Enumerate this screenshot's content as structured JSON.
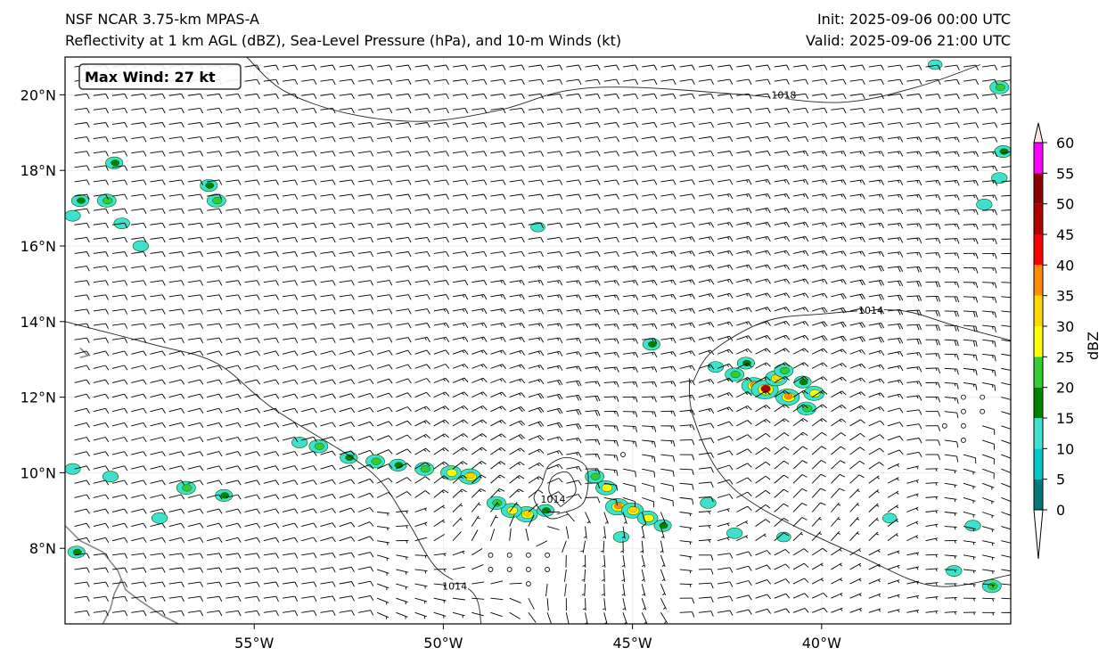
{
  "header": {
    "model_title": "NSF NCAR 3.75-km MPAS-A",
    "fields_title": "Reflectivity at 1 km AGL (dBZ), Sea-Level Pressure (hPa), and 10-m Winds (kt)",
    "init_time": "Init: 2025-09-06 00:00 UTC",
    "valid_time": "Valid: 2025-09-06 21:00 UTC"
  },
  "map": {
    "lon_range": [
      -60,
      -35
    ],
    "lat_range": [
      6,
      21
    ],
    "lon_ticks": [
      {
        "lon": -55,
        "label": "55°W"
      },
      {
        "lon": -50,
        "label": "50°W"
      },
      {
        "lon": -45,
        "label": "45°W"
      },
      {
        "lon": -40,
        "label": "40°W"
      }
    ],
    "lat_ticks": [
      {
        "lat": 20,
        "label": "20°N"
      },
      {
        "lat": 18,
        "label": "18°N"
      },
      {
        "lat": 16,
        "label": "16°N"
      },
      {
        "lat": 14,
        "label": "14°N"
      },
      {
        "lat": 12,
        "label": "12°N"
      },
      {
        "lat": 10,
        "label": "10°N"
      },
      {
        "lat": 8,
        "label": "8°N"
      }
    ],
    "max_wind_label": "Max Wind: 27 kt",
    "isobars": [
      {
        "value": "1018",
        "label_lon": -41.0,
        "label_lat": 20.0,
        "points": [
          [
            -55.2,
            21.0
          ],
          [
            -54.2,
            20.1
          ],
          [
            -52.5,
            19.5
          ],
          [
            -50.5,
            19.3
          ],
          [
            -48.5,
            19.6
          ],
          [
            -46.8,
            20.1
          ],
          [
            -45.0,
            20.2
          ],
          [
            -42.0,
            20.0
          ],
          [
            -39.5,
            19.8
          ],
          [
            -37.5,
            20.2
          ],
          [
            -35.8,
            20.8
          ]
        ]
      },
      {
        "value": "1014",
        "label_lon": -38.7,
        "label_lat": 14.3,
        "points": [
          [
            -43.4,
            12.4
          ],
          [
            -42.9,
            13.2
          ],
          [
            -41.5,
            14.0
          ],
          [
            -40.0,
            14.2
          ],
          [
            -38.0,
            14.3
          ],
          [
            -36.5,
            13.9
          ],
          [
            -35.0,
            13.5
          ]
        ]
      },
      {
        "value": "1014",
        "label_lon": -49.7,
        "label_lat": 7.0,
        "points": [
          [
            -60,
            14.0
          ],
          [
            -57.7,
            13.4
          ],
          [
            -56.0,
            12.9
          ],
          [
            -54.5,
            11.7
          ],
          [
            -52.0,
            10.1
          ],
          [
            -51.0,
            8.8
          ],
          [
            -50.2,
            7.5
          ],
          [
            -49.2,
            6.8
          ],
          [
            -49.0,
            6.0
          ]
        ]
      },
      {
        "value": "",
        "label_lon": 0,
        "label_lat": 0,
        "points": [
          [
            -43.5,
            12.5
          ],
          [
            -43.4,
            11.5
          ],
          [
            -42.7,
            10.0
          ],
          [
            -41.5,
            9.0
          ],
          [
            -39.0,
            7.8
          ],
          [
            -37.0,
            7.0
          ],
          [
            -35.0,
            7.3
          ]
        ]
      },
      {
        "value": "1014",
        "label_lon": -47.1,
        "label_lat": 9.3,
        "points": [
          [
            -47.0,
            8.9
          ],
          [
            -46.3,
            9.2
          ],
          [
            -46.2,
            10.1
          ],
          [
            -46.7,
            10.4
          ],
          [
            -47.2,
            10.2
          ],
          [
            -47.4,
            9.7
          ],
          [
            -47.6,
            9.3
          ],
          [
            -47.2,
            8.8
          ],
          [
            -46.7,
            8.9
          ]
        ]
      },
      {
        "value": "",
        "label_lon": 0,
        "label_lat": 0,
        "points": [
          [
            -46.9,
            9.1
          ],
          [
            -46.5,
            9.5
          ],
          [
            -46.7,
            10.0
          ],
          [
            -47.1,
            9.9
          ],
          [
            -47.2,
            9.5
          ],
          [
            -46.9,
            9.1
          ]
        ]
      }
    ],
    "coastlines": [
      [
        [
          -60,
          8.6
        ],
        [
          -59.6,
          8.2
        ],
        [
          -59.0,
          7.9
        ],
        [
          -58.6,
          7.4
        ],
        [
          -58.4,
          6.9
        ],
        [
          -58.0,
          6.6
        ],
        [
          -57.4,
          6.2
        ],
        [
          -57.0,
          6.0
        ]
      ],
      [
        [
          -58.5,
          7.2
        ],
        [
          -58.7,
          6.8
        ],
        [
          -58.8,
          6.4
        ],
        [
          -59.0,
          6.0
        ]
      ],
      [
        [
          -59.6,
          13.3
        ],
        [
          -59.4,
          13.1
        ],
        [
          -59.6,
          13.05
        ]
      ]
    ],
    "reflectivity_cells": [
      {
        "lon": -41.8,
        "lat": 12.3,
        "dbz": 35
      },
      {
        "lon": -41.5,
        "lat": 12.2,
        "dbz": 45
      },
      {
        "lon": -41.2,
        "lat": 12.5,
        "dbz": 30
      },
      {
        "lon": -40.9,
        "lat": 12.0,
        "dbz": 35
      },
      {
        "lon": -42.3,
        "lat": 12.6,
        "dbz": 20
      },
      {
        "lon": -42.8,
        "lat": 12.8,
        "dbz": 10
      },
      {
        "lon": -40.5,
        "lat": 12.4,
        "dbz": 15
      },
      {
        "lon": -40.2,
        "lat": 12.1,
        "dbz": 25
      },
      {
        "lon": -40.4,
        "lat": 11.7,
        "dbz": 20
      },
      {
        "lon": -41.0,
        "lat": 12.7,
        "dbz": 20
      },
      {
        "lon": -42.0,
        "lat": 12.9,
        "dbz": 15
      },
      {
        "lon": -45.4,
        "lat": 9.1,
        "dbz": 35
      },
      {
        "lon": -45.0,
        "lat": 9.0,
        "dbz": 30
      },
      {
        "lon": -44.6,
        "lat": 8.8,
        "dbz": 25
      },
      {
        "lon": -45.7,
        "lat": 9.6,
        "dbz": 25
      },
      {
        "lon": -46.0,
        "lat": 9.9,
        "dbz": 20
      },
      {
        "lon": -44.2,
        "lat": 8.6,
        "dbz": 15
      },
      {
        "lon": -47.8,
        "lat": 8.9,
        "dbz": 30
      },
      {
        "lon": -48.2,
        "lat": 9.0,
        "dbz": 25
      },
      {
        "lon": -48.6,
        "lat": 9.2,
        "dbz": 20
      },
      {
        "lon": -47.3,
        "lat": 9.0,
        "dbz": 15
      },
      {
        "lon": -49.3,
        "lat": 9.9,
        "dbz": 30
      },
      {
        "lon": -49.8,
        "lat": 10.0,
        "dbz": 25
      },
      {
        "lon": -50.5,
        "lat": 10.1,
        "dbz": 20
      },
      {
        "lon": -51.2,
        "lat": 10.2,
        "dbz": 15
      },
      {
        "lon": -51.8,
        "lat": 10.3,
        "dbz": 20
      },
      {
        "lon": -52.5,
        "lat": 10.4,
        "dbz": 15
      },
      {
        "lon": -53.3,
        "lat": 10.7,
        "dbz": 20
      },
      {
        "lon": -53.8,
        "lat": 10.8,
        "dbz": 10
      },
      {
        "lon": -43.0,
        "lat": 9.2,
        "dbz": 10
      },
      {
        "lon": -38.2,
        "lat": 8.8,
        "dbz": 5
      },
      {
        "lon": -36.0,
        "lat": 8.6,
        "dbz": 10
      },
      {
        "lon": -35.5,
        "lat": 7.0,
        "dbz": 20
      },
      {
        "lon": -36.5,
        "lat": 7.4,
        "dbz": 10
      },
      {
        "lon": -42.3,
        "lat": 8.4,
        "dbz": 10
      },
      {
        "lon": -41.0,
        "lat": 8.3,
        "dbz": 5
      },
      {
        "lon": -59.6,
        "lat": 17.2,
        "dbz": 15
      },
      {
        "lon": -58.9,
        "lat": 17.2,
        "dbz": 20
      },
      {
        "lon": -59.8,
        "lat": 16.8,
        "dbz": 10
      },
      {
        "lon": -58.5,
        "lat": 16.6,
        "dbz": 10
      },
      {
        "lon": -58.7,
        "lat": 18.2,
        "dbz": 15
      },
      {
        "lon": -56.2,
        "lat": 17.6,
        "dbz": 15
      },
      {
        "lon": -56.0,
        "lat": 17.2,
        "dbz": 20
      },
      {
        "lon": -58.0,
        "lat": 16.0,
        "dbz": 10
      },
      {
        "lon": -59.8,
        "lat": 10.1,
        "dbz": 10
      },
      {
        "lon": -58.8,
        "lat": 9.9,
        "dbz": 10
      },
      {
        "lon": -56.8,
        "lat": 9.6,
        "dbz": 20
      },
      {
        "lon": -55.8,
        "lat": 9.4,
        "dbz": 15
      },
      {
        "lon": -57.5,
        "lat": 8.8,
        "dbz": 10
      },
      {
        "lon": -59.7,
        "lat": 7.9,
        "dbz": 15
      },
      {
        "lon": -35.3,
        "lat": 20.2,
        "dbz": 20
      },
      {
        "lon": -35.2,
        "lat": 18.5,
        "dbz": 15
      },
      {
        "lon": -35.3,
        "lat": 17.8,
        "dbz": 10
      },
      {
        "lon": -35.7,
        "lat": 17.1,
        "dbz": 10
      },
      {
        "lon": -44.5,
        "lat": 13.4,
        "dbz": 15
      },
      {
        "lon": -47.5,
        "lat": 16.5,
        "dbz": 5
      },
      {
        "lon": -37.0,
        "lat": 20.8,
        "dbz": 5
      },
      {
        "lon": -45.3,
        "lat": 8.3,
        "dbz": 10
      }
    ],
    "wind_field": {
      "spacing_deg": 0.5,
      "calm_circles": [
        [
          -48.6,
          7.6
        ],
        [
          -48.1,
          7.6
        ],
        [
          -47.6,
          7.6
        ],
        [
          -47.1,
          7.6
        ],
        [
          -47.6,
          7.2
        ],
        [
          -45.3,
          10.5
        ],
        [
          -37.5,
          11.0
        ],
        [
          -36.6,
          11.2
        ],
        [
          -36.1,
          11.9
        ],
        [
          -35.6,
          11.9
        ],
        [
          -36.1,
          11.1
        ]
      ]
    }
  },
  "colorbar": {
    "label": "dBZ",
    "levels": [
      0,
      5,
      10,
      15,
      20,
      25,
      30,
      35,
      40,
      45,
      50,
      55,
      60
    ],
    "tick_labels": [
      "0",
      "5",
      "10",
      "15",
      "20",
      "25",
      "30",
      "35",
      "40",
      "45",
      "50",
      "55",
      "60"
    ],
    "colors": [
      "#00787a",
      "#00c8c8",
      "#40e0d0",
      "#008000",
      "#32cd32",
      "#ffff00",
      "#ffd700",
      "#ff8c00",
      "#ff0000",
      "#b00000",
      "#8b0000",
      "#ff00ff",
      "#ffe4e1"
    ],
    "under_color": "#ffffff",
    "over_color": "#ffe4e1"
  }
}
